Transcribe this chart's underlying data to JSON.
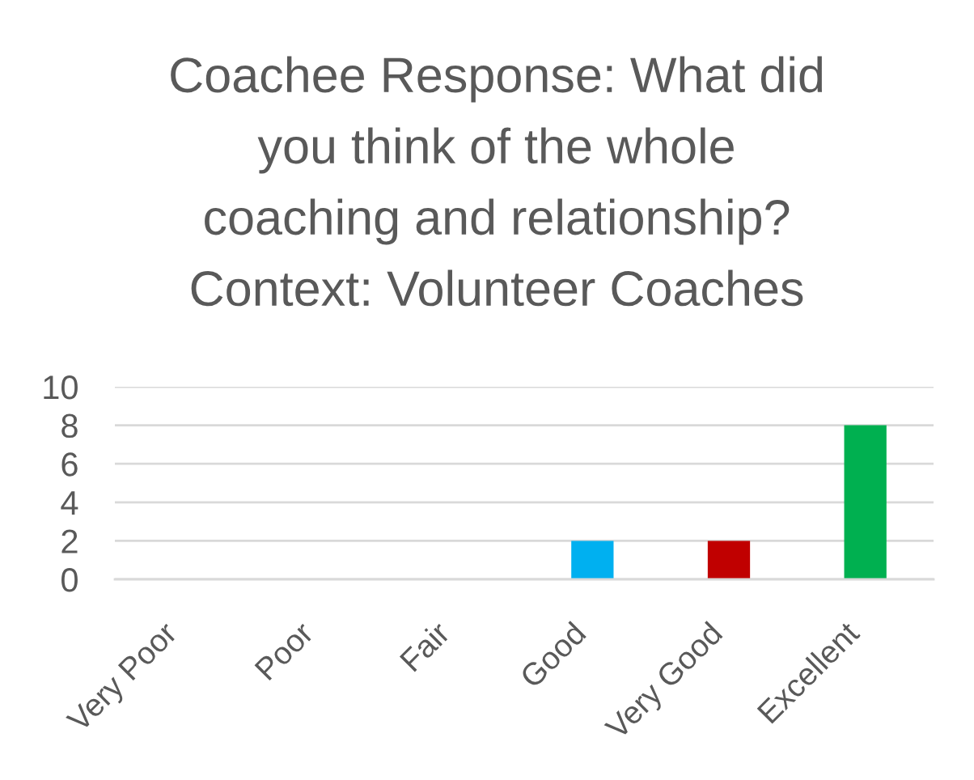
{
  "chart_data": {
    "type": "bar",
    "title": "Coachee Response: What did\nyou think of the whole\ncoaching and relationship?\nContext: Volunteer Coaches",
    "categories": [
      "Very Poor",
      "Poor",
      "Fair",
      "Good",
      "Very Good",
      "Excellent"
    ],
    "values": [
      0,
      0,
      0,
      2,
      2,
      8
    ],
    "colors": [
      null,
      null,
      null,
      "#00b0f0",
      "#c00000",
      "#00b050"
    ],
    "ylim": [
      0,
      10
    ],
    "yticks": [
      0,
      2,
      4,
      6,
      8,
      10
    ],
    "grid": "y"
  }
}
